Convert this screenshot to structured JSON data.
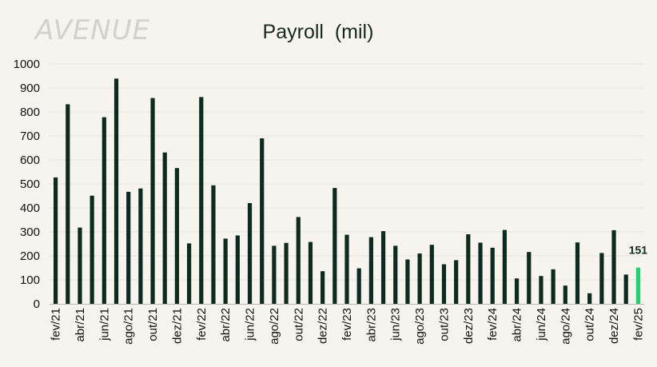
{
  "brand": {
    "logo_text": "AVENUE"
  },
  "colors": {
    "bar": "#0d2a1f",
    "highlight": "#2ecc71",
    "gridline": "#e6e3dd",
    "axis": "#b9b6b0"
  },
  "chart_data": {
    "type": "bar",
    "title": "Payroll  (mil)",
    "xlabel": "",
    "ylabel": "",
    "ylim": [
      0,
      1000
    ],
    "yticks": [
      0,
      100,
      200,
      300,
      400,
      500,
      600,
      700,
      800,
      900,
      1000
    ],
    "categories": [
      "fev/21",
      "mar/21",
      "abr/21",
      "mai/21",
      "jun/21",
      "jul/21",
      "ago/21",
      "set/21",
      "out/21",
      "nov/21",
      "dez/21",
      "jan/22",
      "fev/22",
      "mar/22",
      "abr/22",
      "mai/22",
      "jun/22",
      "jul/22",
      "ago/22",
      "set/22",
      "out/22",
      "nov/22",
      "dez/22",
      "jan/23",
      "fev/23",
      "mar/23",
      "abr/23",
      "mai/23",
      "jun/23",
      "jul/23",
      "ago/23",
      "set/23",
      "out/23",
      "nov/23",
      "dez/23",
      "jan/24",
      "fev/24",
      "mar/24",
      "abr/24",
      "mai/24",
      "jun/24",
      "jul/24",
      "ago/24",
      "set/24",
      "out/24",
      "nov/24",
      "dez/24",
      "jan/25",
      "fev/25"
    ],
    "tick_labels": [
      "fev/21",
      "abr/21",
      "jun/21",
      "ago/21",
      "out/21",
      "dez/21",
      "fev/22",
      "abr/22",
      "jun/22",
      "ago/22",
      "out/22",
      "dez/22",
      "fev/23",
      "abr/23",
      "jun/23",
      "ago/23",
      "out/23",
      "dez/23",
      "fev/24",
      "abr/24",
      "jun/24",
      "ago/24",
      "out/24",
      "dez/24",
      "fev/25"
    ],
    "values": [
      527,
      832,
      318,
      451,
      778,
      939,
      467,
      481,
      858,
      631,
      566,
      252,
      862,
      494,
      272,
      285,
      420,
      690,
      242,
      254,
      362,
      258,
      136,
      483,
      288,
      148,
      278,
      303,
      242,
      185,
      210,
      246,
      165,
      182,
      290,
      255,
      234,
      308,
      106,
      216,
      116,
      144,
      76,
      256,
      44,
      212,
      307,
      122,
      151
    ],
    "highlight_index": 48,
    "data_labels": [
      {
        "category": "fev/25",
        "text": "151"
      }
    ],
    "grid": true,
    "legend": "none"
  }
}
